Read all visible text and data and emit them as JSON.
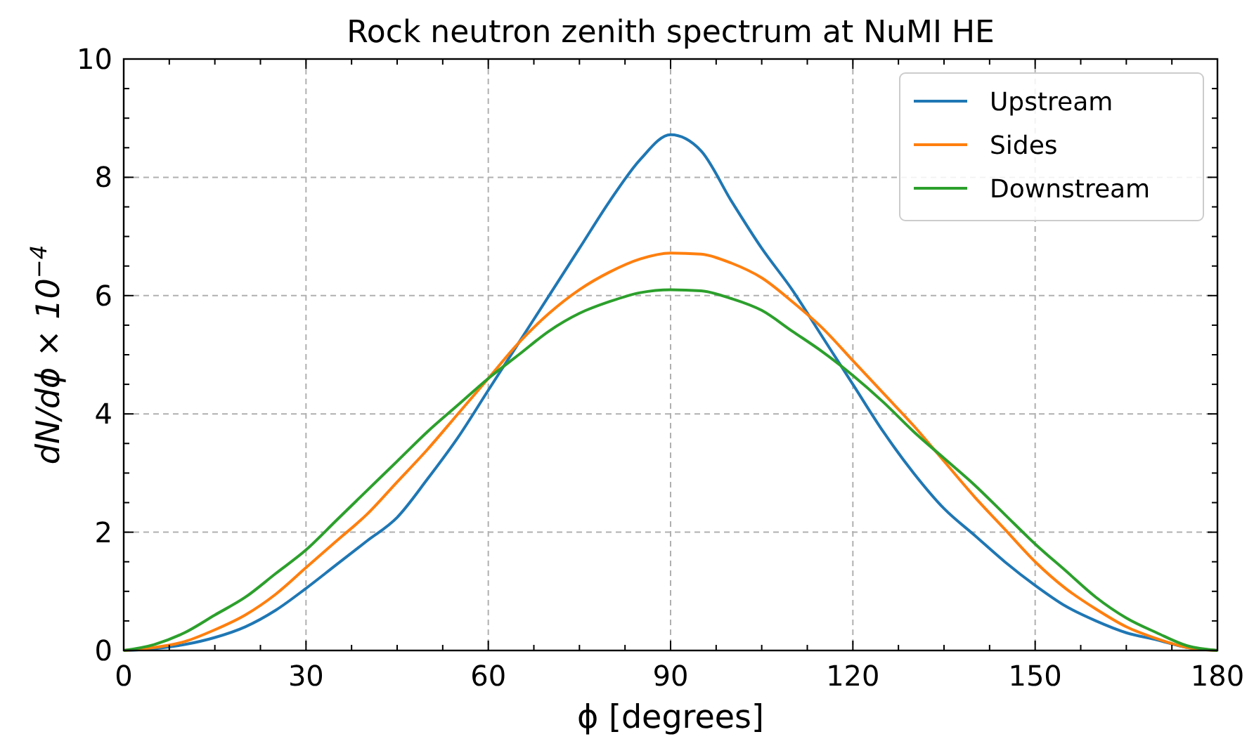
{
  "chart_data": {
    "type": "line",
    "title": "Rock neutron zenith spectrum at NuMI HE",
    "xlabel": "ϕ [degrees]",
    "ylabel": "dN/dϕ × 10$^{−4}$",
    "x": [
      0,
      5,
      10,
      15,
      20,
      25,
      30,
      35,
      40,
      45,
      50,
      55,
      60,
      65,
      70,
      75,
      80,
      85,
      90,
      95,
      100,
      105,
      110,
      115,
      120,
      125,
      130,
      135,
      140,
      145,
      150,
      155,
      160,
      165,
      170,
      175,
      180
    ],
    "series": [
      {
        "name": "Upstream",
        "color": "#1f77b4",
        "values": [
          0,
          0.03,
          0.1,
          0.22,
          0.4,
          0.68,
          1.05,
          1.45,
          1.85,
          2.25,
          2.9,
          3.6,
          4.4,
          5.2,
          6.0,
          6.8,
          7.6,
          8.3,
          8.72,
          8.45,
          7.6,
          6.8,
          6.1,
          5.3,
          4.5,
          3.7,
          3.0,
          2.4,
          1.95,
          1.5,
          1.1,
          0.75,
          0.5,
          0.3,
          0.18,
          0.05,
          0
        ]
      },
      {
        "name": "Sides",
        "color": "#ff7f0e",
        "values": [
          0,
          0.05,
          0.15,
          0.35,
          0.6,
          0.95,
          1.4,
          1.85,
          2.3,
          2.85,
          3.4,
          4.0,
          4.6,
          5.2,
          5.7,
          6.1,
          6.4,
          6.62,
          6.72,
          6.7,
          6.55,
          6.3,
          5.9,
          5.45,
          4.9,
          4.35,
          3.8,
          3.2,
          2.6,
          2.05,
          1.5,
          1.05,
          0.7,
          0.4,
          0.2,
          0.05,
          0
        ]
      },
      {
        "name": "Downstream",
        "color": "#2ca02c",
        "values": [
          0,
          0.1,
          0.3,
          0.6,
          0.9,
          1.3,
          1.7,
          2.2,
          2.7,
          3.2,
          3.7,
          4.15,
          4.6,
          5.0,
          5.4,
          5.7,
          5.9,
          6.05,
          6.1,
          6.08,
          5.95,
          5.75,
          5.4,
          5.05,
          4.65,
          4.2,
          3.7,
          3.25,
          2.8,
          2.3,
          1.8,
          1.35,
          0.9,
          0.55,
          0.3,
          0.08,
          0
        ]
      }
    ],
    "xlim": [
      0,
      180
    ],
    "xticks": [
      0,
      {
        "value": 7.5,
        "label": null
      },
      {
        "value": 15,
        "label": null
      },
      {
        "value": 22.5,
        "label": null
      },
      30,
      {
        "value": 37.5,
        "label": null
      },
      {
        "value": 45,
        "label": null
      },
      {
        "value": 52.5,
        "label": null
      },
      60,
      {
        "value": 67.5,
        "label": null
      },
      {
        "value": 75,
        "label": null
      },
      {
        "value": 82.5,
        "label": null
      },
      90,
      {
        "value": 97.5,
        "label": null
      },
      {
        "value": 105,
        "label": null
      },
      {
        "value": 112.5,
        "label": null
      },
      120,
      {
        "value": 127.5,
        "label": null
      },
      {
        "value": 135,
        "label": null
      },
      {
        "value": 142.5,
        "label": null
      },
      150,
      {
        "value": 157.5,
        "label": null
      },
      {
        "value": 165,
        "label": null
      },
      {
        "value": 172.5,
        "label": null
      },
      180
    ],
    "ylim": [
      0,
      10
    ],
    "yticks": [
      0,
      {
        "value": 0.5,
        "label": null
      },
      {
        "value": 1,
        "label": null
      },
      {
        "value": 1.5,
        "label": null
      },
      2,
      {
        "value": 2.5,
        "label": null
      },
      {
        "value": 3,
        "label": null
      },
      {
        "value": 3.5,
        "label": null
      },
      4,
      {
        "value": 4.5,
        "label": null
      },
      {
        "value": 5,
        "label": null
      },
      {
        "value": 5.5,
        "label": null
      },
      6,
      {
        "value": 6.5,
        "label": null
      },
      {
        "value": 7,
        "label": null
      },
      {
        "value": 7.5,
        "label": null
      },
      8,
      {
        "value": 8.5,
        "label": null
      },
      {
        "value": 9,
        "label": null
      },
      {
        "value": 9.5,
        "label": null
      },
      10
    ],
    "grid": true,
    "legend": "top right",
    "line_style": "solid",
    "marker": "none"
  }
}
